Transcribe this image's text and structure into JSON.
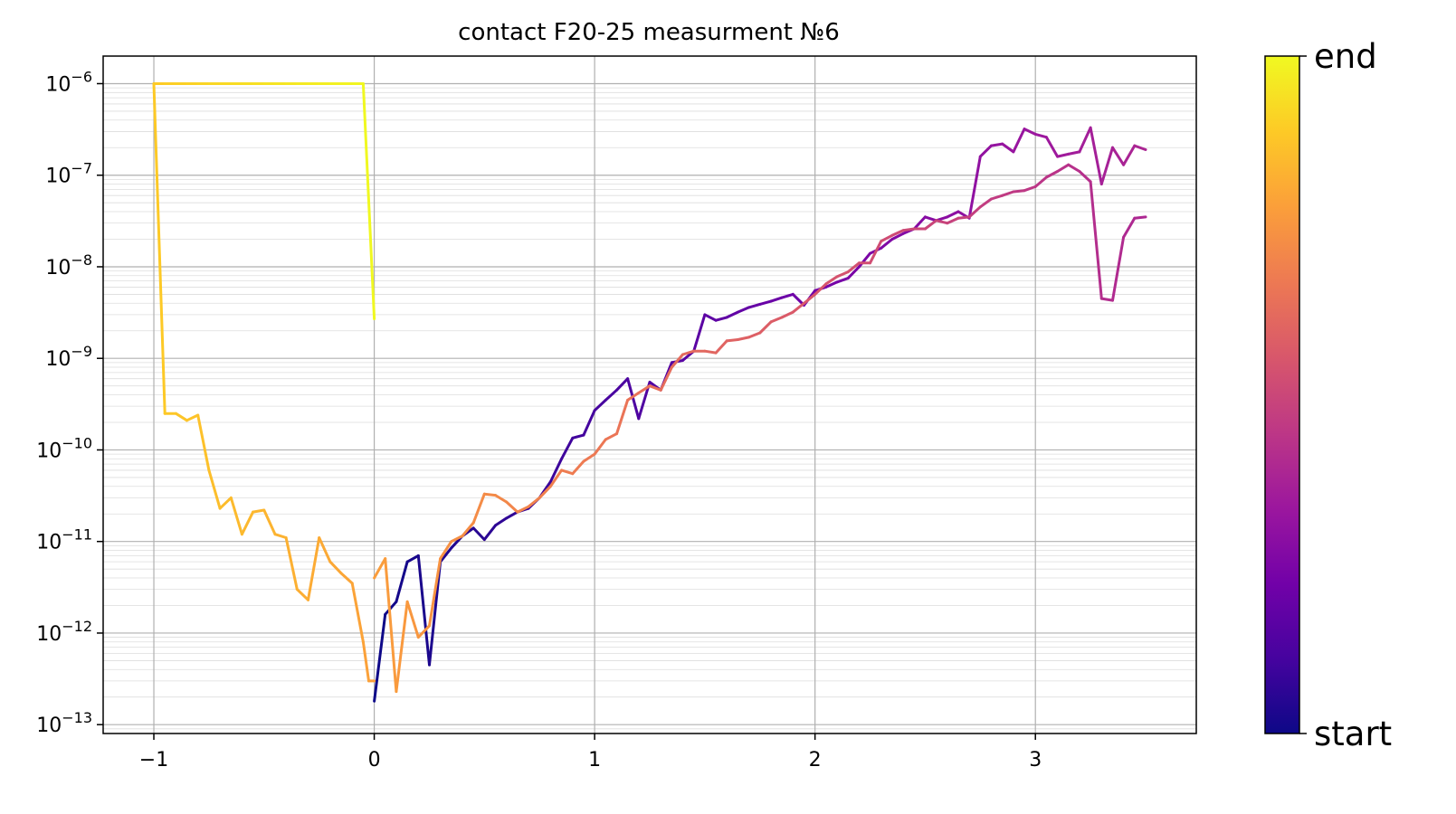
{
  "chart_data": {
    "type": "line",
    "title": "contact F20-25 measurment №6",
    "xlabel": "",
    "ylabel": "",
    "xlim": [
      -1.23,
      3.73
    ],
    "ylim": [
      8e-14,
      2e-06
    ],
    "yscale": "log",
    "grid": true,
    "x_ticks": [
      {
        "value": -1,
        "label": "−1"
      },
      {
        "value": 0,
        "label": "0"
      },
      {
        "value": 1,
        "label": "1"
      },
      {
        "value": 2,
        "label": "2"
      },
      {
        "value": 3,
        "label": "3"
      }
    ],
    "y_ticks": [
      {
        "exp": -6,
        "label_base": "10",
        "label_exp": "−6"
      },
      {
        "exp": -7,
        "label_base": "10",
        "label_exp": "−7"
      },
      {
        "exp": -8,
        "label_base": "10",
        "label_exp": "−8"
      },
      {
        "exp": -9,
        "label_base": "10",
        "label_exp": "−9"
      },
      {
        "exp": -10,
        "label_base": "10",
        "label_exp": "−10"
      },
      {
        "exp": -11,
        "label_base": "10",
        "label_exp": "−11"
      },
      {
        "exp": -12,
        "label_base": "10",
        "label_exp": "−12"
      },
      {
        "exp": -13,
        "label_base": "10",
        "label_exp": "−13"
      }
    ],
    "colorbar": {
      "colormap": "plasma",
      "low_label": "start",
      "high_label": "end",
      "stops": [
        "#0d0887",
        "#46039f",
        "#7201a8",
        "#9c179e",
        "#bd3786",
        "#d8576b",
        "#ed7953",
        "#fb9f3a",
        "#fdca26",
        "#f0f921"
      ]
    },
    "series": [
      {
        "segment": "0 to 3.5 forward",
        "x": [
          0.0,
          0.05,
          0.1,
          0.15,
          0.2,
          0.25,
          0.3,
          0.35,
          0.4,
          0.45,
          0.5,
          0.55,
          0.6,
          0.65,
          0.7,
          0.75,
          0.8,
          0.85,
          0.9,
          0.95,
          1.0,
          1.05,
          1.1,
          1.15,
          1.2,
          1.25,
          1.3,
          1.35,
          1.4,
          1.45,
          1.5,
          1.55,
          1.6,
          1.65,
          1.7,
          1.75,
          1.8,
          1.85,
          1.9,
          1.95,
          2.0,
          2.05,
          2.1,
          2.15,
          2.2,
          2.25,
          2.3,
          2.35,
          2.4,
          2.45,
          2.5,
          2.55,
          2.6,
          2.65,
          2.7,
          2.75,
          2.8,
          2.85,
          2.9,
          2.95,
          3.0,
          3.05,
          3.1,
          3.15,
          3.2,
          3.25,
          3.3,
          3.35,
          3.4,
          3.45,
          3.5
        ],
        "y": [
          1.8e-13,
          1.6e-12,
          2.2e-12,
          6e-12,
          7e-12,
          4.5e-13,
          6e-12,
          8.5e-12,
          1.15e-11,
          1.4e-11,
          1.05e-11,
          1.5e-11,
          1.8e-11,
          2.1e-11,
          2.3e-11,
          3e-11,
          4.5e-11,
          8e-11,
          1.35e-10,
          1.45e-10,
          2.7e-10,
          3.5e-10,
          4.5e-10,
          6e-10,
          2.2e-10,
          5.5e-10,
          4.5e-10,
          9e-10,
          9.5e-10,
          1.2e-09,
          3e-09,
          2.6e-09,
          2.8e-09,
          3.2e-09,
          3.6e-09,
          3.9e-09,
          4.2e-09,
          4.6e-09,
          5e-09,
          3.8e-09,
          5.5e-09,
          6e-09,
          6.8e-09,
          7.5e-09,
          1e-08,
          1.4e-08,
          1.6e-08,
          2e-08,
          2.3e-08,
          2.6e-08,
          3.5e-08,
          3.2e-08,
          3.5e-08,
          4e-08,
          3.4e-08,
          1.6e-07,
          2.1e-07,
          2.2e-07,
          1.8e-07,
          3.2e-07,
          2.8e-07,
          2.6e-07,
          1.6e-07,
          1.7e-07,
          1.8e-07,
          3.3e-07,
          8e-08,
          2e-07,
          1.3e-07,
          2.1e-07,
          1.9e-07
        ]
      },
      {
        "segment": "3.5 to 0 backward",
        "x": [
          3.5,
          3.45,
          3.4,
          3.35,
          3.3,
          3.25,
          3.2,
          3.15,
          3.1,
          3.05,
          3.0,
          2.95,
          2.9,
          2.85,
          2.8,
          2.75,
          2.7,
          2.65,
          2.6,
          2.55,
          2.5,
          2.45,
          2.4,
          2.35,
          2.3,
          2.25,
          2.2,
          2.15,
          2.1,
          2.05,
          2.0,
          1.95,
          1.9,
          1.85,
          1.8,
          1.75,
          1.7,
          1.65,
          1.6,
          1.55,
          1.5,
          1.45,
          1.4,
          1.35,
          1.3,
          1.25,
          1.2,
          1.15,
          1.1,
          1.05,
          1.0,
          0.95,
          0.9,
          0.85,
          0.8,
          0.75,
          0.7,
          0.65,
          0.6,
          0.55,
          0.5,
          0.45,
          0.4,
          0.35,
          0.3,
          0.25,
          0.2,
          0.15,
          0.1,
          0.05,
          0.0
        ],
        "y": [
          3.5e-08,
          3.4e-08,
          2.1e-08,
          4.3e-09,
          4.5e-09,
          8.5e-08,
          1.1e-07,
          1.3e-07,
          1.1e-07,
          9.5e-08,
          7.5e-08,
          6.8e-08,
          6.6e-08,
          6e-08,
          5.5e-08,
          4.5e-08,
          3.5e-08,
          3.4e-08,
          3e-08,
          3.2e-08,
          2.6e-08,
          2.6e-08,
          2.5e-08,
          2.2e-08,
          1.9e-08,
          1.1e-08,
          1.1e-08,
          8.8e-09,
          7.8e-09,
          6.5e-09,
          5e-09,
          4e-09,
          3.2e-09,
          2.8e-09,
          2.5e-09,
          1.9e-09,
          1.7e-09,
          1.6e-09,
          1.55e-09,
          1.15e-09,
          1.2e-09,
          1.2e-09,
          1.1e-09,
          8e-10,
          4.5e-10,
          5e-10,
          4.2e-10,
          3.5e-10,
          1.5e-10,
          1.3e-10,
          9e-11,
          7.5e-11,
          5.5e-11,
          6e-11,
          4e-11,
          3e-11,
          2.4e-11,
          2.1e-11,
          2.7e-11,
          3.2e-11,
          3.3e-11,
          1.6e-11,
          1.15e-11,
          1e-11,
          6.5e-12,
          1.2e-12,
          9e-13,
          2.2e-12,
          2.3e-13,
          6.5e-12,
          4e-12
        ]
      },
      {
        "segment": "0 to -1 forward",
        "x": [
          0.0,
          -0.025,
          -0.05,
          -0.1,
          -0.15,
          -0.2,
          -0.25,
          -0.3,
          -0.35,
          -0.4,
          -0.45,
          -0.5,
          -0.55,
          -0.6,
          -0.65,
          -0.7,
          -0.75,
          -0.8,
          -0.85,
          -0.9,
          -0.95,
          -1.0
        ],
        "y": [
          3e-13,
          3e-13,
          8e-13,
          3.5e-12,
          4.5e-12,
          6e-12,
          1.1e-11,
          2.3e-12,
          3e-12,
          1.1e-11,
          1.2e-11,
          2.2e-11,
          2.1e-11,
          1.2e-11,
          3e-11,
          2.3e-11,
          6e-11,
          2.4e-10,
          2.1e-10,
          2.5e-10,
          2.5e-10,
          1e-06
        ]
      },
      {
        "segment": "-1 to 0 backward",
        "x": [
          -1.0,
          -0.95,
          -0.9,
          -0.85,
          -0.8,
          -0.75,
          -0.7,
          -0.65,
          -0.6,
          -0.55,
          -0.5,
          -0.45,
          -0.4,
          -0.35,
          -0.3,
          -0.25,
          -0.2,
          -0.15,
          -0.1,
          -0.05,
          0.0
        ],
        "y": [
          1e-06,
          1e-06,
          1e-06,
          1e-06,
          1e-06,
          1e-06,
          1e-06,
          1e-06,
          1e-06,
          1e-06,
          1e-06,
          1e-06,
          1e-06,
          1e-06,
          1e-06,
          1e-06,
          1e-06,
          1e-06,
          1e-06,
          1e-06,
          2.7e-09
        ]
      }
    ]
  }
}
